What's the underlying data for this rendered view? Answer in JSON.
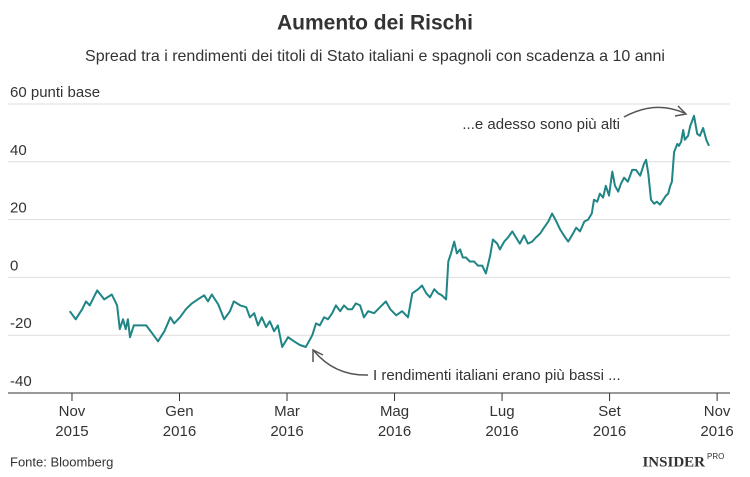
{
  "chart_data": {
    "type": "line",
    "title": "Aumento dei Rischi",
    "subtitle": "Spread tra i rendimenti dei titoli di Stato italiani e spagnoli con scadenza a 10 anni",
    "annotations": [
      "...e adesso sono più alti",
      "I rendimenti italiani erano più bassi ..."
    ],
    "source": "Fonte: Bloomberg",
    "logo": "INSIDER",
    "logo_tag": "PRO",
    "x": [
      -0.04,
      0.07,
      0.19,
      0.26,
      0.33,
      0.47,
      0.6,
      0.74,
      0.84,
      0.89,
      0.95,
      1.0,
      1.04,
      1.08,
      1.15,
      1.27,
      1.38,
      1.49,
      1.6,
      1.72,
      1.83,
      1.9,
      2.01,
      2.12,
      2.23,
      2.34,
      2.46,
      2.53,
      2.6,
      2.72,
      2.83,
      2.94,
      3.01,
      3.13,
      3.24,
      3.31,
      3.39,
      3.46,
      3.53,
      3.61,
      3.68,
      3.76,
      3.83,
      3.91,
      4.02,
      4.13,
      4.24,
      4.35,
      4.47,
      4.54,
      4.61,
      4.69,
      4.76,
      4.84,
      4.91,
      4.99,
      5.06,
      5.13,
      5.21,
      5.28,
      5.36,
      5.43,
      5.51,
      5.62,
      5.73,
      5.84,
      5.92,
      6.03,
      6.14,
      6.25,
      6.33,
      6.44,
      6.51,
      6.59,
      6.66,
      6.74,
      6.81,
      6.88,
      6.96,
      7.0,
      7.05,
      7.11,
      7.16,
      7.22,
      7.27,
      7.33,
      7.4,
      7.48,
      7.55,
      7.63,
      7.7,
      7.78,
      7.83,
      7.91,
      7.96,
      8.04,
      8.11,
      8.19,
      8.26,
      8.33,
      8.41,
      8.48,
      8.56,
      8.63,
      8.71,
      8.78,
      8.86,
      8.93,
      9.01,
      9.08,
      9.15,
      9.23,
      9.3,
      9.38,
      9.45,
      9.53,
      9.6,
      9.67,
      9.71,
      9.77,
      9.82,
      9.88,
      9.93,
      9.99,
      10.05,
      10.1,
      10.16,
      10.21,
      10.27,
      10.34,
      10.42,
      10.49,
      10.57,
      10.64,
      10.68,
      10.72,
      10.77,
      10.83,
      10.88,
      10.94,
      11.0,
      11.05,
      11.09,
      11.13,
      11.16,
      11.2,
      11.26,
      11.29,
      11.33,
      11.37,
      11.4,
      11.46,
      11.5,
      11.53,
      11.57,
      11.63,
      11.68,
      11.74,
      11.8,
      11.85
    ],
    "series": [
      {
        "name": "Spread",
        "color": "#1f8585",
        "values": [
          -11.7,
          -14.5,
          -11.0,
          -8.3,
          -9.7,
          -4.5,
          -7.6,
          -5.9,
          -9.7,
          -17.9,
          -14.5,
          -17.9,
          -14.5,
          -20.7,
          -16.6,
          -16.6,
          -16.6,
          -19.3,
          -22.1,
          -18.6,
          -13.8,
          -15.9,
          -13.8,
          -11.0,
          -9.0,
          -7.6,
          -6.2,
          -8.3,
          -5.9,
          -9.3,
          -14.5,
          -11.7,
          -8.3,
          -9.7,
          -10.3,
          -13.8,
          -12.4,
          -16.6,
          -13.8,
          -17.2,
          -15.2,
          -18.6,
          -16.6,
          -24.1,
          -20.7,
          -22.1,
          -23.4,
          -24.1,
          -20.0,
          -15.9,
          -16.6,
          -13.8,
          -14.5,
          -12.4,
          -9.7,
          -11.7,
          -9.7,
          -11.0,
          -11.0,
          -9.0,
          -9.7,
          -13.8,
          -11.7,
          -12.4,
          -10.3,
          -8.3,
          -11.0,
          -13.1,
          -11.7,
          -13.8,
          -5.5,
          -4.1,
          -2.8,
          -5.5,
          -6.9,
          -4.1,
          -5.5,
          -6.2,
          -7.6,
          5.5,
          8.3,
          12.4,
          8.3,
          9.7,
          6.9,
          6.9,
          5.5,
          5.5,
          4.1,
          4.1,
          1.4,
          7.6,
          13.1,
          11.7,
          9.7,
          12.4,
          13.8,
          15.9,
          13.8,
          11.7,
          14.5,
          11.7,
          12.4,
          13.8,
          15.2,
          17.2,
          19.3,
          22.1,
          19.3,
          16.6,
          14.5,
          12.4,
          14.5,
          17.2,
          15.9,
          19.3,
          20.0,
          22.1,
          26.9,
          26.2,
          29.0,
          27.6,
          31.7,
          28.3,
          36.6,
          31.7,
          29.7,
          32.4,
          34.5,
          33.1,
          37.2,
          37.2,
          35.2,
          39.3,
          40.7,
          35.9,
          26.9,
          25.5,
          26.2,
          25.2,
          26.9,
          28.3,
          29.0,
          31.7,
          33.1,
          43.4,
          46.2,
          45.5,
          46.9,
          51.0,
          47.6,
          49.0,
          52.4,
          53.8,
          55.9,
          49.7,
          49.0,
          51.7,
          47.6,
          45.5
        ]
      }
    ],
    "xlim": [
      -0.26,
      12.24
    ],
    "xticks": [
      {
        "value": 0,
        "label": "Nov 2015"
      },
      {
        "value": 2,
        "label": "Gen 2016"
      },
      {
        "value": 4,
        "label": "Mar 2016"
      },
      {
        "value": 6,
        "label": "Mag 2016"
      },
      {
        "value": 8,
        "label": "Lug 2016"
      },
      {
        "value": 10,
        "label": "Set 2016"
      },
      {
        "value": 12,
        "label": "Nov 2016"
      }
    ],
    "ylim": [
      -40,
      60
    ],
    "yticks": [
      -40,
      -20,
      0,
      20,
      40,
      {
        "value": 60,
        "label": "60 punti base"
      }
    ],
    "grid": true
  }
}
